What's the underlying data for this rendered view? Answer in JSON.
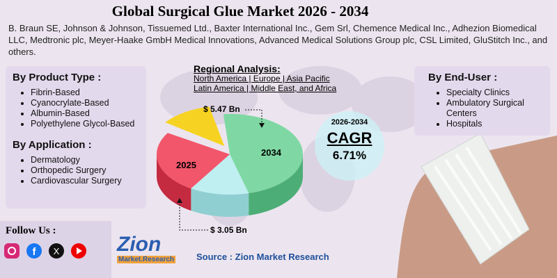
{
  "header": {
    "title": "Global Surgical Glue Market 2026 - 2034",
    "companies": "B. Braun SE, Johnson & Johnson, Tissuemed Ltd., Baxter International Inc., Gem Srl, Chemence Medical Inc., Adhezion Biomedical LLC, Medtronic plc, Meyer-Haake GmbH Medical Innovations, Advanced Medical Solutions Group plc, CSL Limited, GluStitch Inc., and others."
  },
  "product_type": {
    "heading": "By Product Type :",
    "items": [
      "Fibrin-Based",
      "Cyanocrylate-Based",
      "Albumin-Based",
      "Polyethylene Glycol-Based"
    ]
  },
  "application": {
    "heading": "By Application :",
    "items": [
      "Dermatology",
      "Orthopedic Surgery",
      "Cardiovascular Surgery"
    ]
  },
  "regional": {
    "heading": "Regional Analysis:",
    "lines": [
      "North America | Europe | Asia Pacific",
      "Latin America | Middle East, and Africa"
    ]
  },
  "end_user": {
    "heading": "By End-User :",
    "items": [
      "Specialty Clinics",
      "Ambulatory Surgical Centers",
      "Hospitals"
    ]
  },
  "pie": {
    "label_start": "2025",
    "label_end": "2034",
    "value_end": "$ 5.47 Bn",
    "value_start": "$ 3.05 Bn"
  },
  "cagr": {
    "period": "2026-2034",
    "label": "CAGR",
    "value": "6.71%"
  },
  "footer": {
    "follow": "Follow Us :",
    "logo_main": "Zion",
    "logo_sub": "Market.Research",
    "source": "Source : Zion Market Research"
  }
}
